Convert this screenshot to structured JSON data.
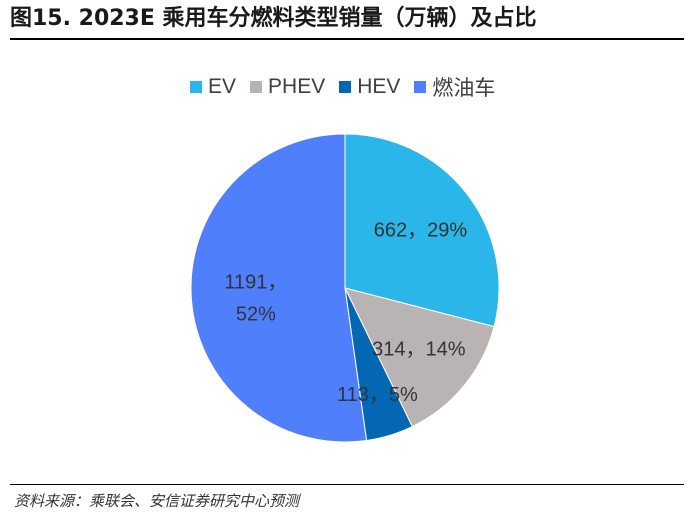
{
  "title": "图15. 2023E 乘用车分燃料类型销量（万辆）及占比",
  "source": "资料来源：乘联会、安信证券研究中心预测",
  "chart_data": {
    "type": "pie",
    "title": "图15. 2023E 乘用车分燃料类型销量（万辆）及占比",
    "unit": "万辆",
    "legend_position": "top",
    "series": [
      {
        "name": "EV",
        "value": 662,
        "percent": 29,
        "label_line1": "662，29%",
        "label_line2": "",
        "color": "#2ab6e8"
      },
      {
        "name": "PHEV",
        "value": 314,
        "percent": 14,
        "label_line1": "314，14%",
        "label_line2": "",
        "color": "#b9b3b3"
      },
      {
        "name": "HEV",
        "value": 113,
        "percent": 5,
        "label_line1": "113，5%",
        "label_line2": "",
        "color": "#0467b3"
      },
      {
        "name": "燃油车",
        "value": 1191,
        "percent": 52,
        "label_line1": "1191，",
        "label_line2": "52%",
        "color": "#4f7ffb"
      }
    ]
  }
}
